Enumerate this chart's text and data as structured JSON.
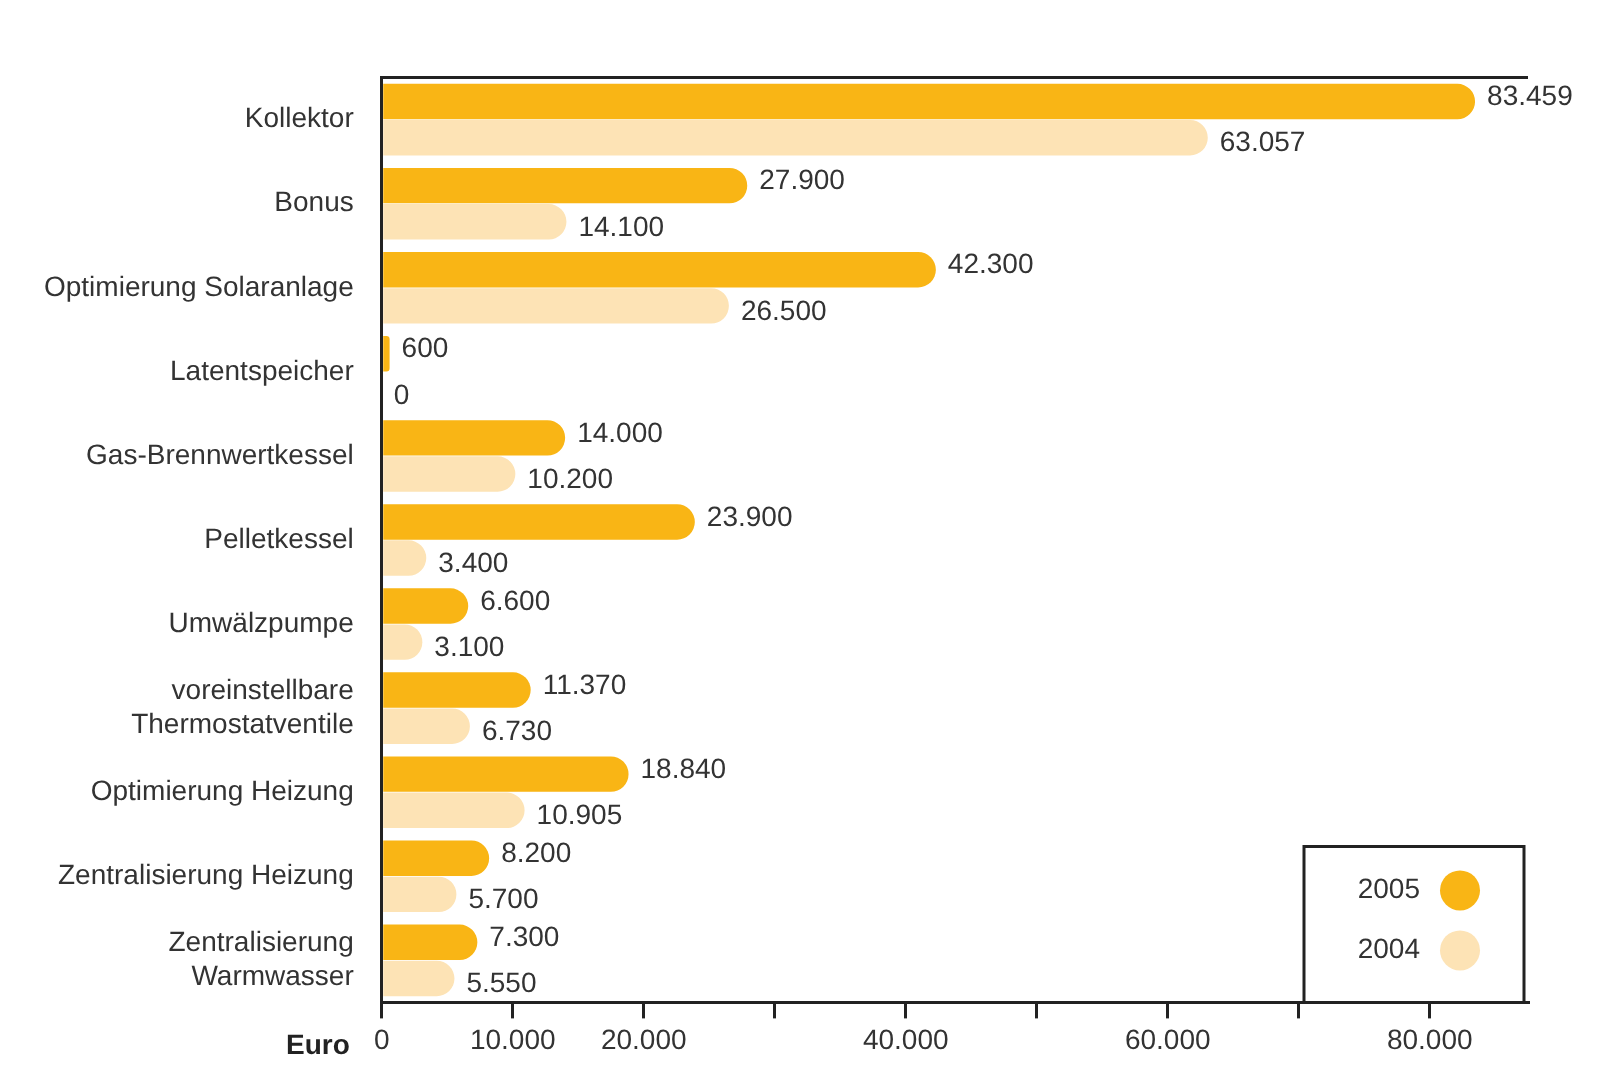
{
  "chart_data": {
    "type": "bar",
    "orientation": "horizontal",
    "xlabel": "Euro",
    "categories": [
      "Kollektor",
      "Bonus",
      "Optimierung Solaranlage",
      "Latentspeicher",
      "Gas-Brennwertkessel",
      "Pelletkessel",
      "Umwälzpumpe",
      "voreinstellbare\nThermostatventile",
      "Optimierung Heizung",
      "Zentralisierung Heizung",
      "Zentralisierung\nWarmwasser"
    ],
    "series": [
      {
        "name": "2005",
        "color": "#f9b515",
        "values": [
          83459,
          27900,
          42300,
          600,
          14000,
          23900,
          6600,
          11370,
          18840,
          8200,
          7300
        ],
        "value_labels": [
          "83.459",
          "27.900",
          "42.300",
          "600",
          "14.000",
          "23.900",
          "6.600",
          "11.370",
          "18.840",
          "8.200",
          "7.300"
        ]
      },
      {
        "name": "2004",
        "color": "#fde3b5",
        "values": [
          63057,
          14100,
          26500,
          0,
          10200,
          3400,
          3100,
          6730,
          10905,
          5700,
          5550
        ],
        "value_labels": [
          "63.057",
          "14.100",
          "26.500",
          "0",
          "10.200",
          "3.400",
          "3.100",
          "6.730",
          "10.905",
          "5.700",
          "5.550"
        ]
      }
    ],
    "xlim": [
      0,
      87500
    ],
    "xticks": [
      0,
      {
        "value": 10000,
        "label": "10.000"
      },
      {
        "value": 20000,
        "label": "20.000"
      },
      {
        "value": 30000,
        "label": null
      },
      {
        "value": 40000,
        "label": "40.000"
      },
      {
        "value": 50000,
        "label": null
      },
      {
        "value": 60000,
        "label": "60.000"
      },
      {
        "value": 70000,
        "label": null
      },
      {
        "value": 80000,
        "label": "80.000"
      }
    ],
    "legend": "bottom right",
    "grid": false
  }
}
